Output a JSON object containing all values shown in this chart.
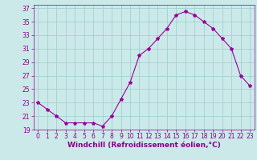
{
  "x": [
    0,
    1,
    2,
    3,
    4,
    5,
    6,
    7,
    8,
    9,
    10,
    11,
    12,
    13,
    14,
    15,
    16,
    17,
    18,
    19,
    20,
    21,
    22,
    23
  ],
  "y": [
    23,
    22,
    21,
    20,
    20,
    20,
    20,
    19.5,
    21,
    23.5,
    26,
    30,
    31,
    32.5,
    34,
    36,
    36.5,
    36,
    35,
    34,
    32.5,
    31,
    27,
    25.5
  ],
  "line_color": "#990099",
  "marker": "*",
  "marker_size": 3,
  "bg_color": "#cce9e9",
  "grid_color": "#99cccc",
  "tick_color": "#880088",
  "xlabel": "Windchill (Refroidissement éolien,°C)",
  "xlim": [
    -0.5,
    23.5
  ],
  "ylim": [
    19,
    37.5
  ],
  "yticks": [
    19,
    21,
    23,
    25,
    27,
    29,
    31,
    33,
    35,
    37
  ],
  "xticks": [
    0,
    1,
    2,
    3,
    4,
    5,
    6,
    7,
    8,
    9,
    10,
    11,
    12,
    13,
    14,
    15,
    16,
    17,
    18,
    19,
    20,
    21,
    22,
    23
  ],
  "xlabel_fontsize": 6.5,
  "tick_fontsize": 5.5
}
